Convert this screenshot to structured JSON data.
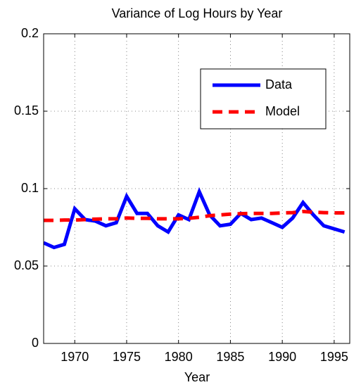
{
  "chart_data": {
    "type": "line",
    "title": "Variance of Log Hours by Year",
    "x_label": "Year",
    "x": [
      1967,
      1968,
      1969,
      1970,
      1971,
      1972,
      1973,
      1974,
      1975,
      1976,
      1977,
      1978,
      1979,
      1980,
      1981,
      1982,
      1983,
      1984,
      1985,
      1986,
      1987,
      1988,
      1989,
      1990,
      1991,
      1992,
      1993,
      1994,
      1995,
      1996
    ],
    "series": [
      {
        "name": "Data",
        "color": "#0000ff",
        "dash": false,
        "values": [
          0.065,
          0.062,
          0.064,
          0.087,
          0.08,
          0.079,
          0.076,
          0.078,
          0.095,
          0.084,
          0.084,
          0.076,
          0.072,
          0.083,
          0.08,
          0.098,
          0.083,
          0.076,
          0.077,
          0.084,
          0.08,
          0.081,
          0.078,
          0.075,
          0.081,
          0.091,
          0.083,
          0.076,
          0.074,
          0.072
        ]
      },
      {
        "name": "Model",
        "color": "#ff0000",
        "dash": true,
        "values": [
          0.0795,
          0.0795,
          0.0797,
          0.0797,
          0.08,
          0.0803,
          0.0805,
          0.0805,
          0.081,
          0.0808,
          0.0808,
          0.0805,
          0.0805,
          0.0805,
          0.0808,
          0.0815,
          0.0825,
          0.083,
          0.0835,
          0.0838,
          0.084,
          0.084,
          0.084,
          0.0843,
          0.0845,
          0.0852,
          0.0848,
          0.0845,
          0.0843,
          0.0843
        ]
      }
    ],
    "xlim": [
      1967,
      1996.5
    ],
    "xticks": [
      1970,
      1975,
      1980,
      1985,
      1990,
      1995
    ],
    "ylim": [
      0,
      0.2
    ],
    "yticks": [
      0,
      0.05,
      0.1,
      0.15,
      0.2
    ],
    "grid": true,
    "legend": "upper right"
  }
}
